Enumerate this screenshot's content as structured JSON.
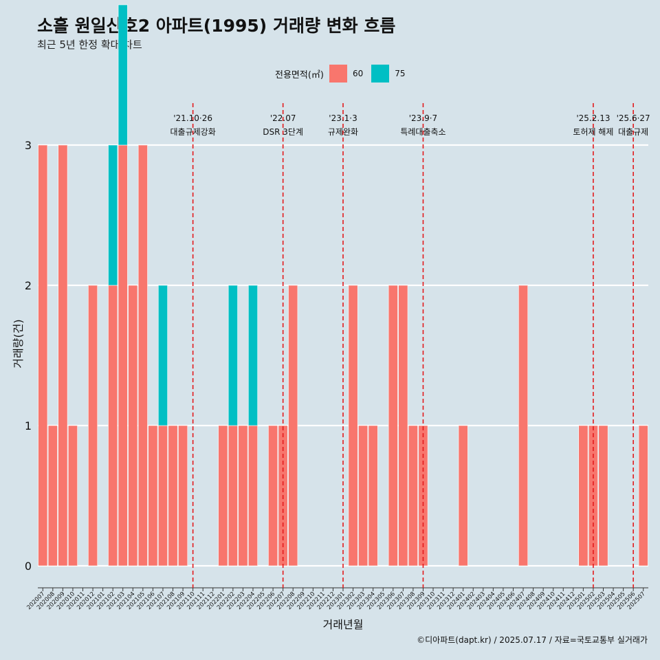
{
  "chart_data": {
    "type": "bar",
    "title": "소흘 원일산호2 아파트(1995) 거래량 변화 흐름",
    "subtitle": "최근 5년 한정 확대 차트",
    "xlabel": "거래년월",
    "ylabel": "거래량(건)",
    "ylim": [
      0,
      3
    ],
    "yticks": [
      0,
      1,
      2,
      3
    ],
    "legend": {
      "title": "전용면적(㎡)",
      "position": "top",
      "entries": [
        {
          "name": "60",
          "color": "#f8766d"
        },
        {
          "name": "75",
          "color": "#00bfc4"
        }
      ]
    },
    "categories": [
      "202007",
      "202008",
      "202009",
      "202010",
      "202011",
      "202012",
      "202101",
      "202102",
      "202103",
      "202104",
      "202105",
      "202106",
      "202107",
      "202108",
      "202109",
      "202110",
      "202111",
      "202112",
      "202201",
      "202202",
      "202203",
      "202204",
      "202205",
      "202206",
      "202207",
      "202208",
      "202209",
      "202210",
      "202211",
      "202212",
      "202301",
      "202302",
      "202303",
      "202304",
      "202305",
      "202306",
      "202307",
      "202308",
      "202309",
      "202310",
      "202311",
      "202312",
      "202401",
      "202402",
      "202403",
      "202404",
      "202405",
      "202406",
      "202407",
      "202408",
      "202409",
      "202410",
      "202411",
      "202412",
      "202501",
      "202502",
      "202503",
      "202504",
      "202505",
      "202506",
      "202507"
    ],
    "series": [
      {
        "name": "60",
        "color": "#f8766d",
        "values": [
          3,
          1,
          3,
          1,
          0,
          2,
          0,
          2,
          3,
          2,
          3,
          1,
          1,
          1,
          1,
          0,
          0,
          0,
          1,
          1,
          1,
          1,
          0,
          1,
          1,
          2,
          0,
          0,
          0,
          0,
          0,
          2,
          1,
          1,
          0,
          2,
          2,
          1,
          1,
          0,
          0,
          0,
          1,
          0,
          0,
          0,
          0,
          0,
          2,
          0,
          0,
          0,
          0,
          0,
          1,
          1,
          1,
          0,
          0,
          0,
          1
        ]
      },
      {
        "name": "75",
        "color": "#00bfc4",
        "values": [
          0,
          0,
          0,
          0,
          0,
          0,
          0,
          1,
          1,
          0,
          0,
          0,
          1,
          0,
          0,
          0,
          0,
          0,
          0,
          1,
          0,
          1,
          0,
          0,
          0,
          0,
          0,
          0,
          0,
          0,
          0,
          0,
          0,
          0,
          0,
          0,
          0,
          0,
          0,
          0,
          0,
          0,
          0,
          0,
          0,
          0,
          0,
          0,
          0,
          0,
          0,
          0,
          0,
          0,
          0,
          0,
          0,
          0,
          0,
          0,
          0
        ]
      }
    ],
    "annotations": [
      {
        "at": "202110",
        "date": "'21.10·26",
        "label": "대출규제강화"
      },
      {
        "at": "202207",
        "date": "'22.07",
        "label": "DSR 3단계"
      },
      {
        "at": "202301",
        "date": "'23.1·3",
        "label": "규제완화"
      },
      {
        "at": "202309",
        "date": "'23.9·7",
        "label": "특례대출축소"
      },
      {
        "at": "202502",
        "date": "'25.2.13",
        "label": "토허제 해제"
      },
      {
        "at": "202506",
        "date": "'25.6·27",
        "label": "대출규제"
      }
    ],
    "grid": true
  },
  "caption": "©디아파트(dapt.kr) / 2025.07.17 / 자료=국토교통부 실거래가"
}
